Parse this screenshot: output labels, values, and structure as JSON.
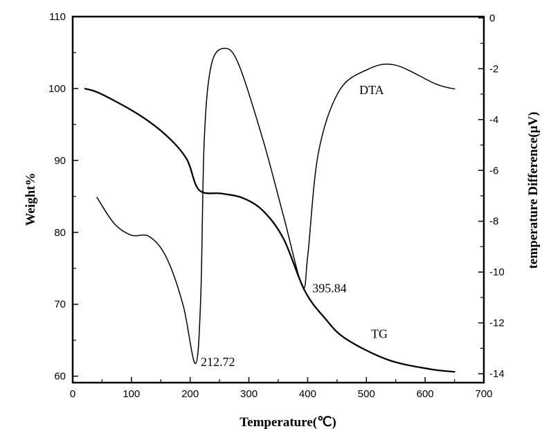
{
  "chart_data": {
    "type": "line",
    "title": "",
    "xlabel": "Temperature(℃)",
    "ylabel": "Weight%",
    "y2label": "temperature Difference(μV)",
    "xlim": [
      0,
      700
    ],
    "ylim": [
      59.1,
      110
    ],
    "y2lim": [
      -14.35,
      0.05
    ],
    "xticks": [
      0,
      100,
      200,
      300,
      400,
      500,
      600,
      700
    ],
    "yticks": [
      60,
      70,
      80,
      90,
      100,
      110
    ],
    "y2ticks": [
      0,
      -2,
      -4,
      -6,
      -8,
      -10,
      -12,
      -14
    ],
    "grid": false,
    "series": [
      {
        "name": "TG",
        "axis": "left",
        "x": [
          20,
          47,
          112,
          159,
          194,
          215,
          253,
          289,
          324,
          359,
          395,
          430,
          465,
          536,
          607,
          651
        ],
        "y": [
          100,
          99.3,
          96.4,
          93.5,
          90.2,
          85.9,
          85.4,
          84.8,
          83,
          79.1,
          71.9,
          68,
          65.2,
          62.3,
          61,
          60.6
        ]
      },
      {
        "name": "DTA",
        "axis": "right",
        "x": [
          41,
          71,
          100,
          130,
          159,
          188,
          209,
          218,
          224,
          236,
          259,
          283,
          324,
          359,
          391,
          400,
          418,
          453,
          500,
          548,
          618,
          651
        ],
        "y": [
          -7.05,
          -8.1,
          -8.55,
          -8.6,
          -9.4,
          -11.3,
          -13.6,
          -11,
          -4.8,
          -1.85,
          -1.2,
          -1.85,
          -4.8,
          -7.8,
          -10.55,
          -9.4,
          -5.35,
          -2.9,
          -2.05,
          -1.85,
          -2.6,
          -2.8
        ]
      }
    ],
    "annotations": [
      {
        "text": "212.72",
        "x": 218,
        "y2": -13.7
      },
      {
        "text": "395.84",
        "x": 408,
        "y2": -10.8
      },
      {
        "text": "DTA",
        "x": 488,
        "y2": -3
      },
      {
        "text": "TG",
        "x": 508,
        "y2": -12.6
      }
    ]
  }
}
